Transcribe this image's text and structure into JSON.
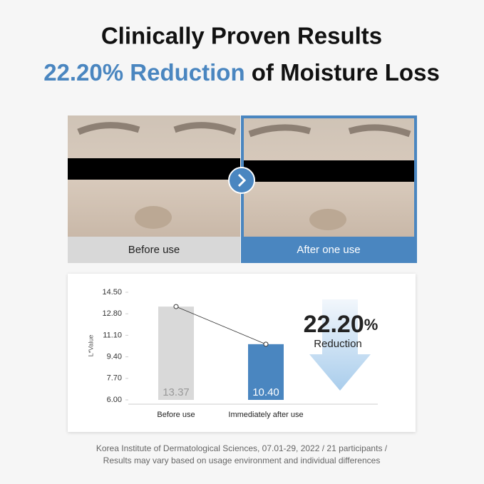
{
  "header": {
    "title": "Clinically Proven Results",
    "highlight": "22.20% Reduction",
    "subtitle_rest": " of Moisture Loss"
  },
  "photos": {
    "before_label": "Before use",
    "after_label": "After one use"
  },
  "chart_data": {
    "type": "bar",
    "ylabel": "L*Value",
    "categories": [
      "Before use",
      "Immediately after use"
    ],
    "values": [
      13.37,
      10.4
    ],
    "value_labels": [
      "13.37",
      "10.40"
    ],
    "colors": [
      "#d9d9d9",
      "#4a86c0"
    ],
    "ylim": [
      6,
      14.5
    ],
    "yticks": [
      {
        "value": 6,
        "label": "6.00"
      },
      {
        "value": 7.7,
        "label": "7.70"
      },
      {
        "value": 9.4,
        "label": "9.40"
      },
      {
        "value": 11.1,
        "label": "11.10"
      },
      {
        "value": 12.8,
        "label": "12.80"
      },
      {
        "value": 14.5,
        "label": "14.50"
      }
    ]
  },
  "callout": {
    "number": "22.20",
    "unit": "%",
    "label": "Reduction"
  },
  "footnote": [
    "Korea Institute of Dermatological Sciences, 07.01-29, 2022 / 21 participants /",
    "Results may vary based on usage environment and individual differences"
  ]
}
